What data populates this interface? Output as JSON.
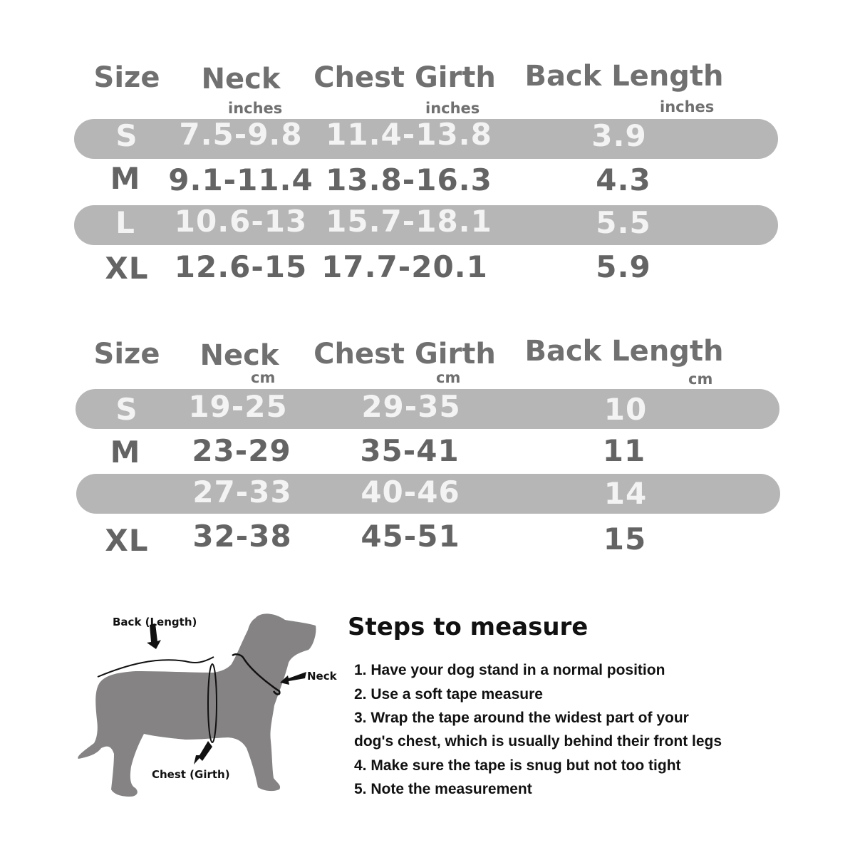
{
  "inch_table": {
    "headers": [
      "Size",
      "Neck",
      "Chest Girth",
      "Back Length"
    ],
    "units": [
      "inches",
      "inches",
      "inches"
    ],
    "rows": [
      {
        "size": "S",
        "neck": "7.5-9.8",
        "chest": "11.4-13.8",
        "back": "3.9"
      },
      {
        "size": "M",
        "neck": "9.1-11.4",
        "chest": "13.8-16.3",
        "back": "4.3"
      },
      {
        "size": "L",
        "neck": "10.6-13",
        "chest": "15.7-18.1",
        "back": "5.5"
      },
      {
        "size": "XL",
        "neck": "12.6-15",
        "chest": "17.7-20.1",
        "back": "5.9"
      }
    ]
  },
  "cm_table": {
    "headers": [
      "Size",
      "Neck",
      "Chest Girth",
      "Back Length"
    ],
    "units": [
      "cm",
      "cm",
      "cm"
    ],
    "rows": [
      {
        "size": "S",
        "neck": "19-25",
        "chest": "29-35",
        "back": "10"
      },
      {
        "size": "M",
        "neck": "23-29",
        "chest": "35-41",
        "back": "11"
      },
      {
        "size": "",
        "neck": "27-33",
        "chest": "40-46",
        "back": "14"
      },
      {
        "size": "XL",
        "neck": "32-38",
        "chest": "45-51",
        "back": "15"
      }
    ]
  },
  "diagram": {
    "labels": {
      "back": "Back (Length)",
      "neck": "Neck",
      "chest": "Chest (Girth)"
    },
    "dog_color": "#858383"
  },
  "steps": {
    "title": "Steps to measure",
    "lines": [
      "1. Have your dog stand in a normal position",
      "2. Use a soft tape measure",
      "3. Wrap the tape around the widest part of your",
      "dog's chest, which is usually behind their front legs",
      "4. Make sure the tape is snug but not too tight",
      "5. Note the measurement"
    ]
  },
  "colors": {
    "band": "#b6b6b7",
    "header_text": "#707070",
    "band_text": "#f3f3f3",
    "row_text": "#646464"
  }
}
